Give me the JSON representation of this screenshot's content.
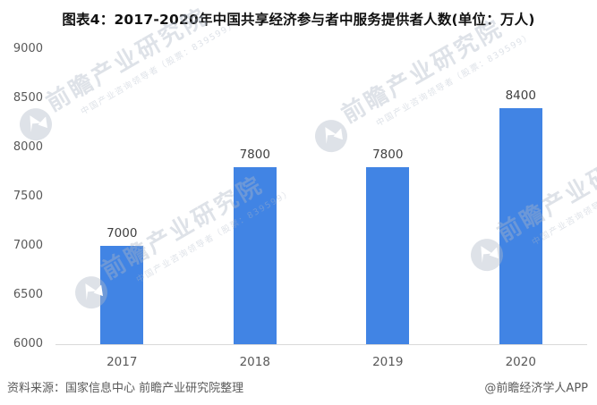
{
  "page": {
    "source_note": "资料来源：国家信息中心 前瞻产业研究院整理",
    "credit": "@前瞻经济学人APP"
  },
  "colors": {
    "bar": "#4184E4",
    "title": "#111111",
    "tick_label": "#595959",
    "value_label": "#404040",
    "axis_line": "#D9D9D9",
    "footer": "#595959",
    "watermark": "rgba(172,182,198,0.40)",
    "watermark_logo": "rgba(176,186,201,0.42)"
  },
  "chart_data": {
    "type": "bar",
    "title": "图表4：2017-2020年中国共享经济参与者中服务提供者人数(单位：万人)",
    "categories": [
      "2017",
      "2018",
      "2019",
      "2020"
    ],
    "values": [
      7000,
      7800,
      7800,
      8400
    ],
    "unit": "万人",
    "xlabel": "",
    "ylabel": "",
    "ylim": [
      6000,
      9000
    ],
    "yticks": [
      6000,
      6500,
      7000,
      7500,
      8000,
      8500,
      9000
    ],
    "grid": false,
    "legend": false,
    "data_labels": true
  },
  "watermark": {
    "logo_icon": "qianzhan-logo-icon",
    "text_large": "前瞻产业研究院",
    "text_small": "中国产业咨询领导者（股票：839599）"
  }
}
